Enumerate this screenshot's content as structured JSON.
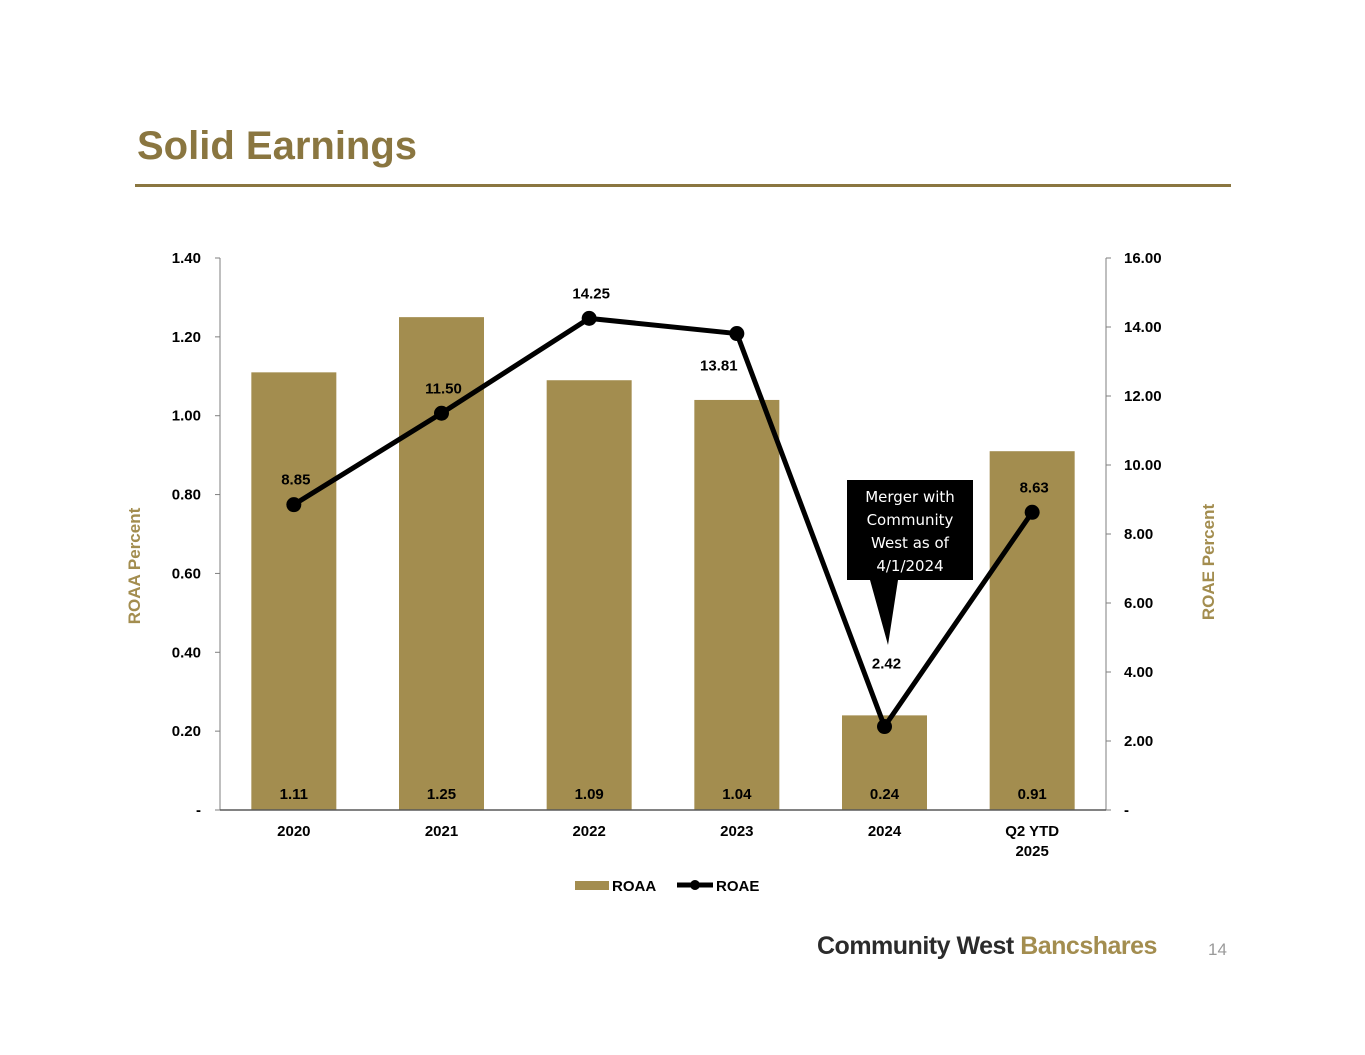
{
  "slide": {
    "title": "Solid Earnings",
    "brand_part1": "Community West",
    "brand_part2": "Bancshares",
    "page_number": "14"
  },
  "colors": {
    "accent": "#8a7640",
    "bar": "#a38d4f",
    "line": "#000000",
    "callout_bg": "#000000",
    "callout_text": "#ffffff"
  },
  "chart_data": {
    "type": "bar",
    "categories": [
      [
        "2020"
      ],
      [
        "2021"
      ],
      [
        "2022"
      ],
      [
        "2023"
      ],
      [
        "2024"
      ],
      [
        "Q2 YTD",
        "2025"
      ]
    ],
    "series": [
      {
        "name": "ROAA",
        "type": "bar",
        "axis": "left",
        "values": [
          1.11,
          1.25,
          1.09,
          1.04,
          0.24,
          0.91
        ]
      },
      {
        "name": "ROAE",
        "type": "line",
        "axis": "right",
        "values": [
          8.85,
          11.5,
          14.25,
          13.81,
          2.42,
          8.63
        ]
      }
    ],
    "bar_labels": [
      "1.11",
      "1.25",
      "1.09",
      "1.04",
      "0.24",
      "0.91"
    ],
    "line_labels": [
      "8.85",
      "11.50",
      "14.25",
      "13.81",
      "2.42",
      "8.63"
    ],
    "y_left": {
      "label": "ROAA Percent",
      "min": 0,
      "max": 1.4,
      "ticks": [
        0,
        0.2,
        0.4,
        0.6,
        0.8,
        1.0,
        1.2,
        1.4
      ],
      "tick_labels": [
        "-",
        "0.20",
        "0.40",
        "0.60",
        "0.80",
        "1.00",
        "1.20",
        "1.40"
      ]
    },
    "y_right": {
      "label": "ROAE Percent",
      "min": 0,
      "max": 16,
      "ticks": [
        0,
        2,
        4,
        6,
        8,
        10,
        12,
        14,
        16
      ],
      "tick_labels": [
        "-",
        "2.00",
        "4.00",
        "6.00",
        "8.00",
        "10.00",
        "12.00",
        "14.00",
        "16.00"
      ]
    },
    "legend": {
      "position": "bottom",
      "items": [
        "ROAA",
        "ROAE"
      ]
    },
    "annotation": {
      "category": "2024",
      "lines": [
        "Merger with",
        "Community",
        "West as of",
        "4/1/2024"
      ]
    },
    "grid": false
  }
}
